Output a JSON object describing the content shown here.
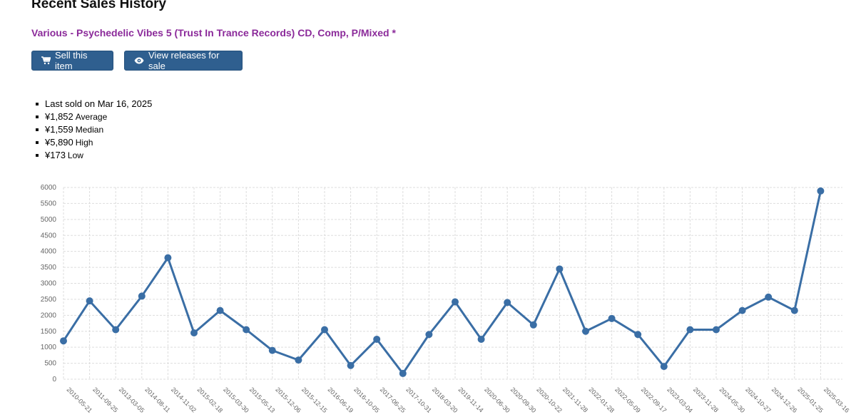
{
  "header": {
    "title": "Recent Sales History",
    "release": "Various - Psychedelic Vibes 5 (Trust In Trance Records) CD, Comp, P/Mixed *"
  },
  "buttons": {
    "sell_label": "Sell this item",
    "view_label": "View releases for sale"
  },
  "stats": {
    "last_sold": "Last sold on Mar 16, 2025",
    "average_value": "¥1,852",
    "average_label": "Average",
    "median_value": "¥1,559",
    "median_label": "Median",
    "high_value": "¥5,890",
    "high_label": "High",
    "low_value": "¥173",
    "low_label": "Low"
  },
  "colors": {
    "accent": "#2f5f8f",
    "line": "#3a6ea5",
    "release_title": "#8b2a9a",
    "grid": "#dddddd"
  },
  "chart_data": {
    "type": "line",
    "grid": true,
    "ylim": [
      0,
      6000
    ],
    "yticks": [
      0,
      500,
      1000,
      1500,
      2000,
      2500,
      3000,
      3500,
      4000,
      4500,
      5000,
      5500,
      6000
    ],
    "x": [
      "2010-05-21",
      "2011-09-25",
      "2013-03-05",
      "2014-08-11",
      "2014-11-02",
      "2015-02-18",
      "2015-03-30",
      "2015-05-13",
      "2015-12-06",
      "2015-12-15",
      "2016-06-19",
      "2016-10-05",
      "2017-06-25",
      "2017-10-31",
      "2018-03-20",
      "2019-11-14",
      "2020-06-30",
      "2020-09-30",
      "2020-10-22",
      "2021-11-28",
      "2022-01-28",
      "2022-05-09",
      "2022-09-17",
      "2023-03-04",
      "2023-11-28",
      "2024-05-30",
      "2024-10-27",
      "2024-12-26",
      "2025-01-25",
      "2025-03-16"
    ],
    "values": [
      1200,
      2450,
      1550,
      2600,
      3800,
      1450,
      2150,
      1550,
      900,
      600,
      1550,
      430,
      1250,
      180,
      1400,
      2420,
      1250,
      2400,
      1700,
      3450,
      1500,
      1900,
      1400,
      400,
      1550,
      1550,
      2150,
      2570,
      2150,
      5890
    ]
  }
}
